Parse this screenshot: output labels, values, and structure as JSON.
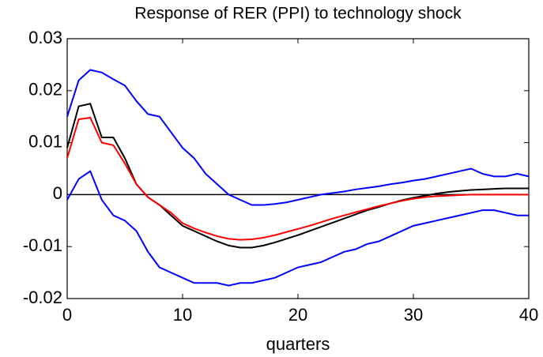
{
  "chart_data": {
    "type": "line",
    "title": "Response of RER (PPI) to technology shock",
    "x_label": "quarters",
    "x": [
      0,
      1,
      2,
      3,
      4,
      5,
      6,
      7,
      8,
      9,
      10,
      11,
      12,
      13,
      14,
      15,
      16,
      17,
      18,
      19,
      20,
      21,
      22,
      23,
      24,
      25,
      26,
      27,
      28,
      29,
      30,
      31,
      32,
      33,
      34,
      35,
      36,
      37,
      38,
      39,
      40
    ],
    "series": [
      {
        "color": "#0000ff",
        "values": [
          0.015,
          0.022,
          0.024,
          0.0235,
          0.0222,
          0.021,
          0.018,
          0.0155,
          0.015,
          0.012,
          0.009,
          0.007,
          0.004,
          0.002,
          0.0,
          -0.001,
          -0.002,
          -0.002,
          -0.0018,
          -0.0015,
          -0.001,
          -0.0005,
          0.0,
          0.0003,
          0.0006,
          0.001,
          0.0013,
          0.0016,
          0.002,
          0.0023,
          0.0027,
          0.003,
          0.0035,
          0.004,
          0.0045,
          0.005,
          0.004,
          0.0035,
          0.0035,
          0.004,
          0.0035
        ]
      },
      {
        "color": "#0000ff",
        "values": [
          -0.001,
          0.003,
          0.0045,
          -0.001,
          -0.004,
          -0.005,
          -0.007,
          -0.011,
          -0.014,
          -0.015,
          -0.016,
          -0.017,
          -0.017,
          -0.017,
          -0.0175,
          -0.017,
          -0.017,
          -0.0165,
          -0.016,
          -0.015,
          -0.014,
          -0.0135,
          -0.013,
          -0.012,
          -0.011,
          -0.0105,
          -0.0095,
          -0.009,
          -0.008,
          -0.007,
          -0.006,
          -0.0055,
          -0.005,
          -0.0045,
          -0.004,
          -0.0035,
          -0.003,
          -0.003,
          -0.0035,
          -0.004,
          -0.004
        ]
      },
      {
        "color": "#000000",
        "values": [
          0.009,
          0.017,
          0.0175,
          0.011,
          0.011,
          0.007,
          0.002,
          -0.0005,
          -0.002,
          -0.004,
          -0.006,
          -0.007,
          -0.008,
          -0.009,
          -0.0098,
          -0.0102,
          -0.0102,
          -0.0098,
          -0.0092,
          -0.0085,
          -0.0078,
          -0.007,
          -0.0062,
          -0.0054,
          -0.0046,
          -0.0038,
          -0.003,
          -0.0024,
          -0.0017,
          -0.0011,
          -0.0006,
          -0.0002,
          0.0002,
          0.0005,
          0.0007,
          0.0009,
          0.001,
          0.0011,
          0.0012,
          0.0012,
          0.0012
        ]
      },
      {
        "color": "#ff0000",
        "values": [
          0.007,
          0.0145,
          0.0148,
          0.01,
          0.0095,
          0.006,
          0.002,
          -0.0005,
          -0.002,
          -0.0035,
          -0.0055,
          -0.0065,
          -0.0073,
          -0.008,
          -0.0085,
          -0.0087,
          -0.0086,
          -0.0083,
          -0.0078,
          -0.0072,
          -0.0066,
          -0.006,
          -0.0053,
          -0.0046,
          -0.004,
          -0.0034,
          -0.0028,
          -0.0022,
          -0.0017,
          -0.0012,
          -0.0008,
          -0.0005,
          -0.0003,
          -0.0002,
          -0.0001,
          0,
          0,
          0,
          0,
          0,
          0
        ]
      }
    ],
    "hline": 0,
    "xlim": [
      0,
      40
    ],
    "xticks": [
      0,
      10,
      20,
      30,
      40
    ],
    "ylim": [
      -0.02,
      0.03
    ],
    "yticks": [
      -0.02,
      -0.01,
      0,
      0.01,
      0.02,
      0.03
    ],
    "grid": false
  }
}
